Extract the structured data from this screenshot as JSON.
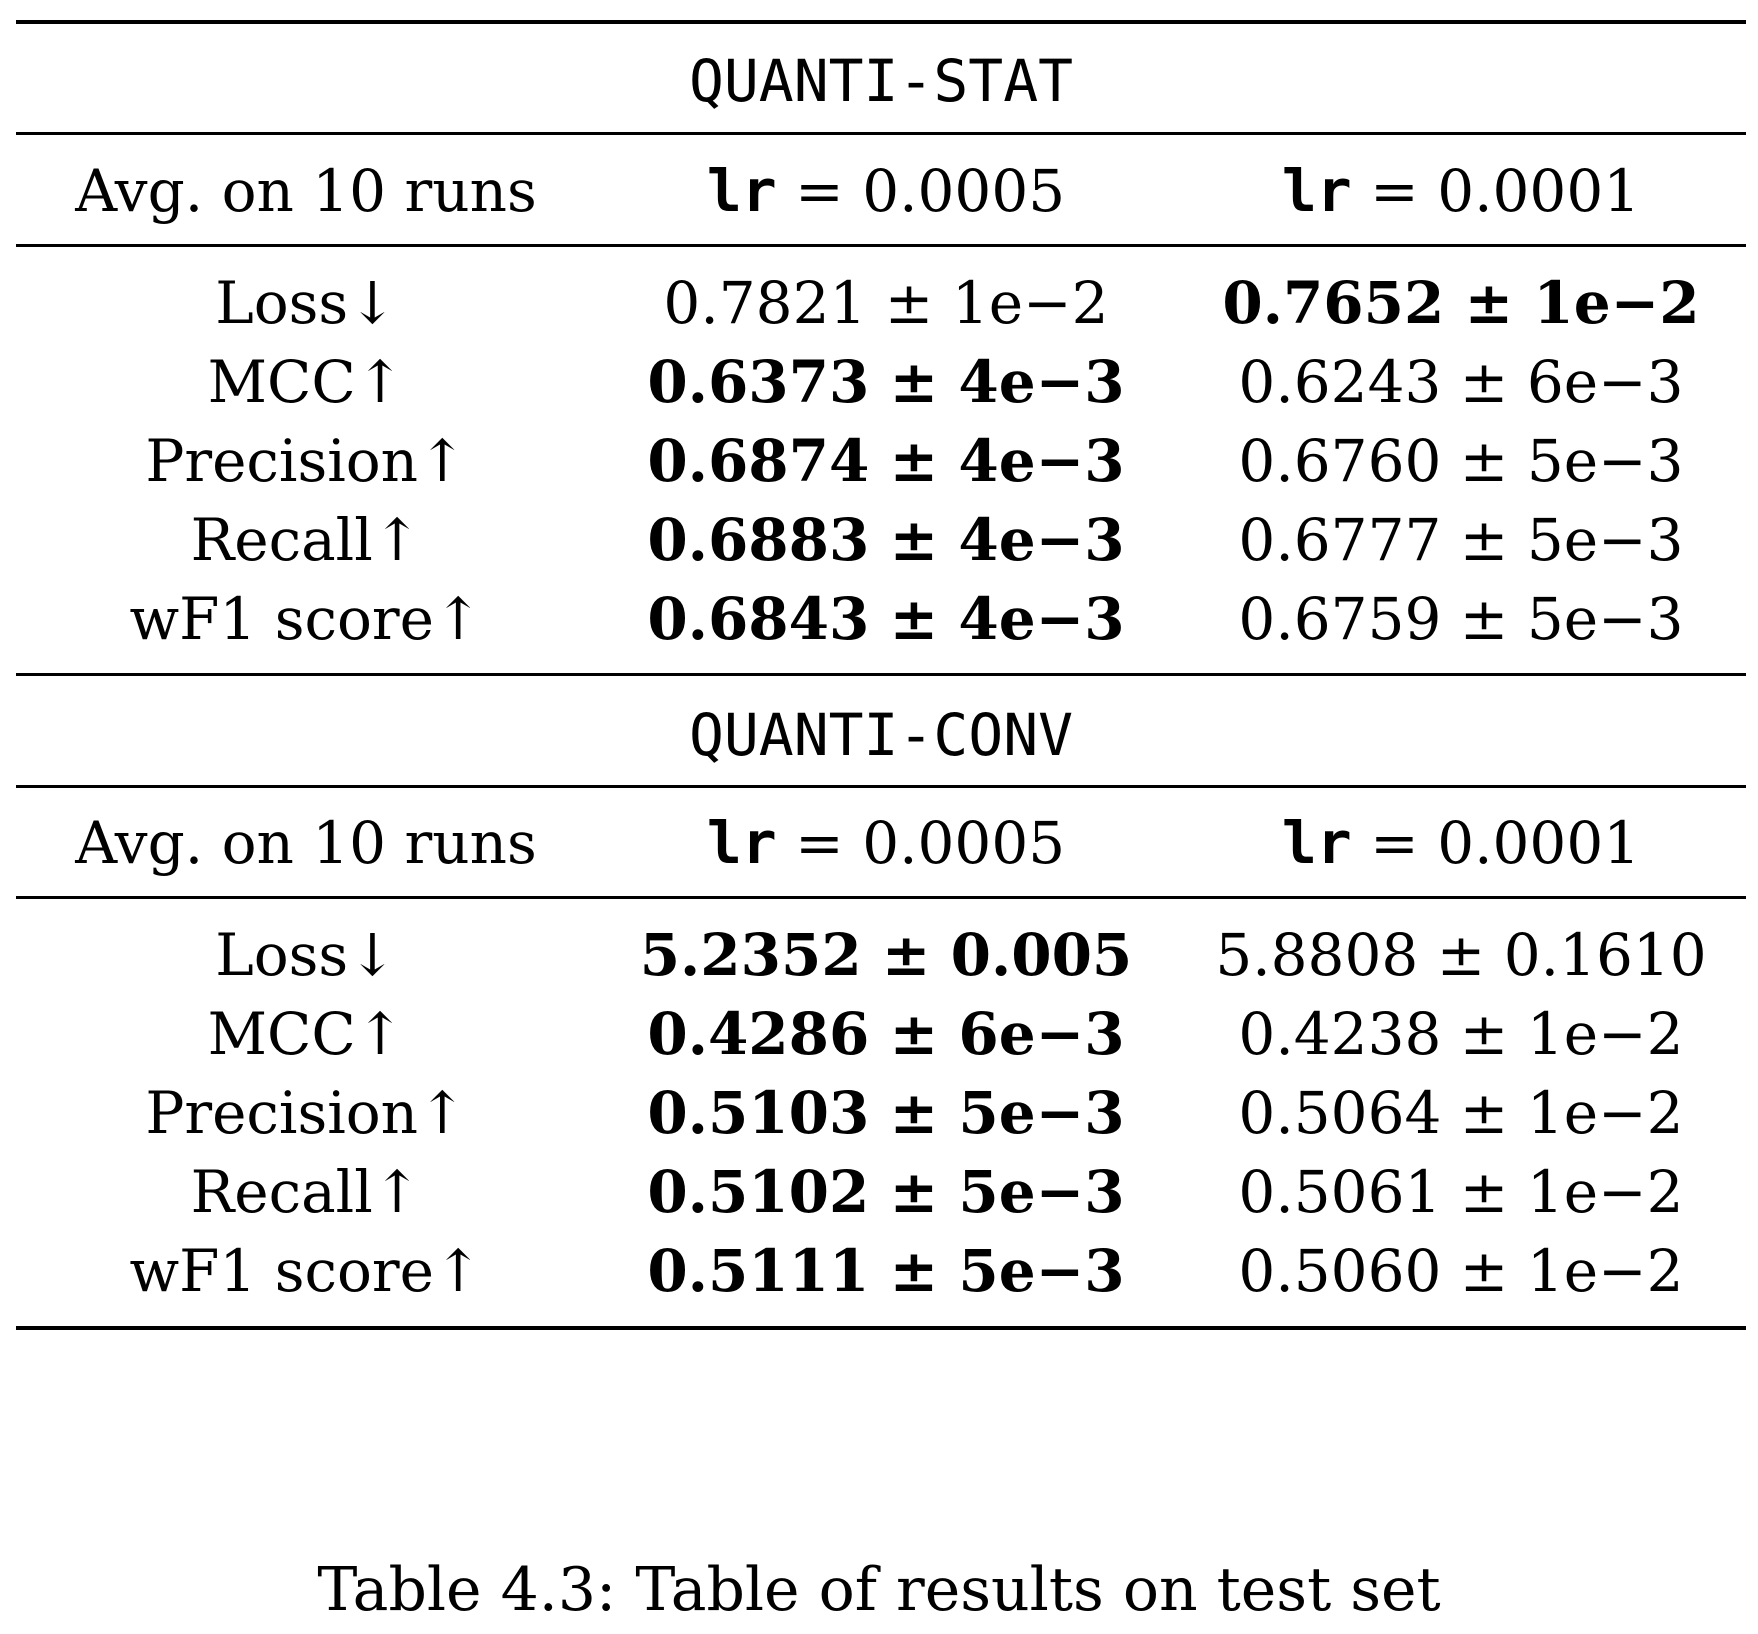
{
  "sections": [
    {
      "title": "QUANTI-STAT",
      "header": {
        "metric_col": "Avg. on 10 runs",
        "lr_label": "lr",
        "lr_values": [
          "0.0005",
          "0.0001"
        ]
      },
      "rows": [
        {
          "metric": "Loss↓",
          "v1": "0.7821 ± 1e−2",
          "v1_bold": false,
          "v2": "0.7652 ± 1e−2",
          "v2_bold": true
        },
        {
          "metric": "MCC↑",
          "v1": "0.6373 ± 4e−3",
          "v1_bold": true,
          "v2": "0.6243 ± 6e−3",
          "v2_bold": false
        },
        {
          "metric": "Precision↑",
          "v1": "0.6874 ± 4e−3",
          "v1_bold": true,
          "v2": "0.6760 ± 5e−3",
          "v2_bold": false
        },
        {
          "metric": "Recall↑",
          "v1": "0.6883 ± 4e−3",
          "v1_bold": true,
          "v2": "0.6777 ± 5e−3",
          "v2_bold": false
        },
        {
          "metric": "wF1 score↑",
          "v1": "0.6843 ± 4e−3",
          "v1_bold": true,
          "v2": "0.6759 ± 5e−3",
          "v2_bold": false
        }
      ]
    },
    {
      "title": "QUANTI-CONV",
      "header": {
        "metric_col": "Avg. on 10 runs",
        "lr_label": "lr",
        "lr_values": [
          "0.0005",
          "0.0001"
        ]
      },
      "rows": [
        {
          "metric": "Loss↓",
          "v1": "5.2352 ± 0.005",
          "v1_bold": true,
          "v2": "5.8808 ± 0.1610",
          "v2_bold": false
        },
        {
          "metric": "MCC↑",
          "v1": "0.4286 ± 6e−3",
          "v1_bold": true,
          "v2": "0.4238 ± 1e−2",
          "v2_bold": false
        },
        {
          "metric": "Precision↑",
          "v1": "0.5103 ± 5e−3",
          "v1_bold": true,
          "v2": "0.5064 ± 1e−2",
          "v2_bold": false
        },
        {
          "metric": "Recall↑",
          "v1": "0.5102 ± 5e−3",
          "v1_bold": true,
          "v2": "0.5061 ± 1e−2",
          "v2_bold": false
        },
        {
          "metric": "wF1 score↑",
          "v1": "0.5111 ± 5e−3",
          "v1_bold": true,
          "v2": "0.5060 ± 1e−2",
          "v2_bold": false
        }
      ]
    }
  ],
  "caption": "Table 4.3: Table of results on test set"
}
